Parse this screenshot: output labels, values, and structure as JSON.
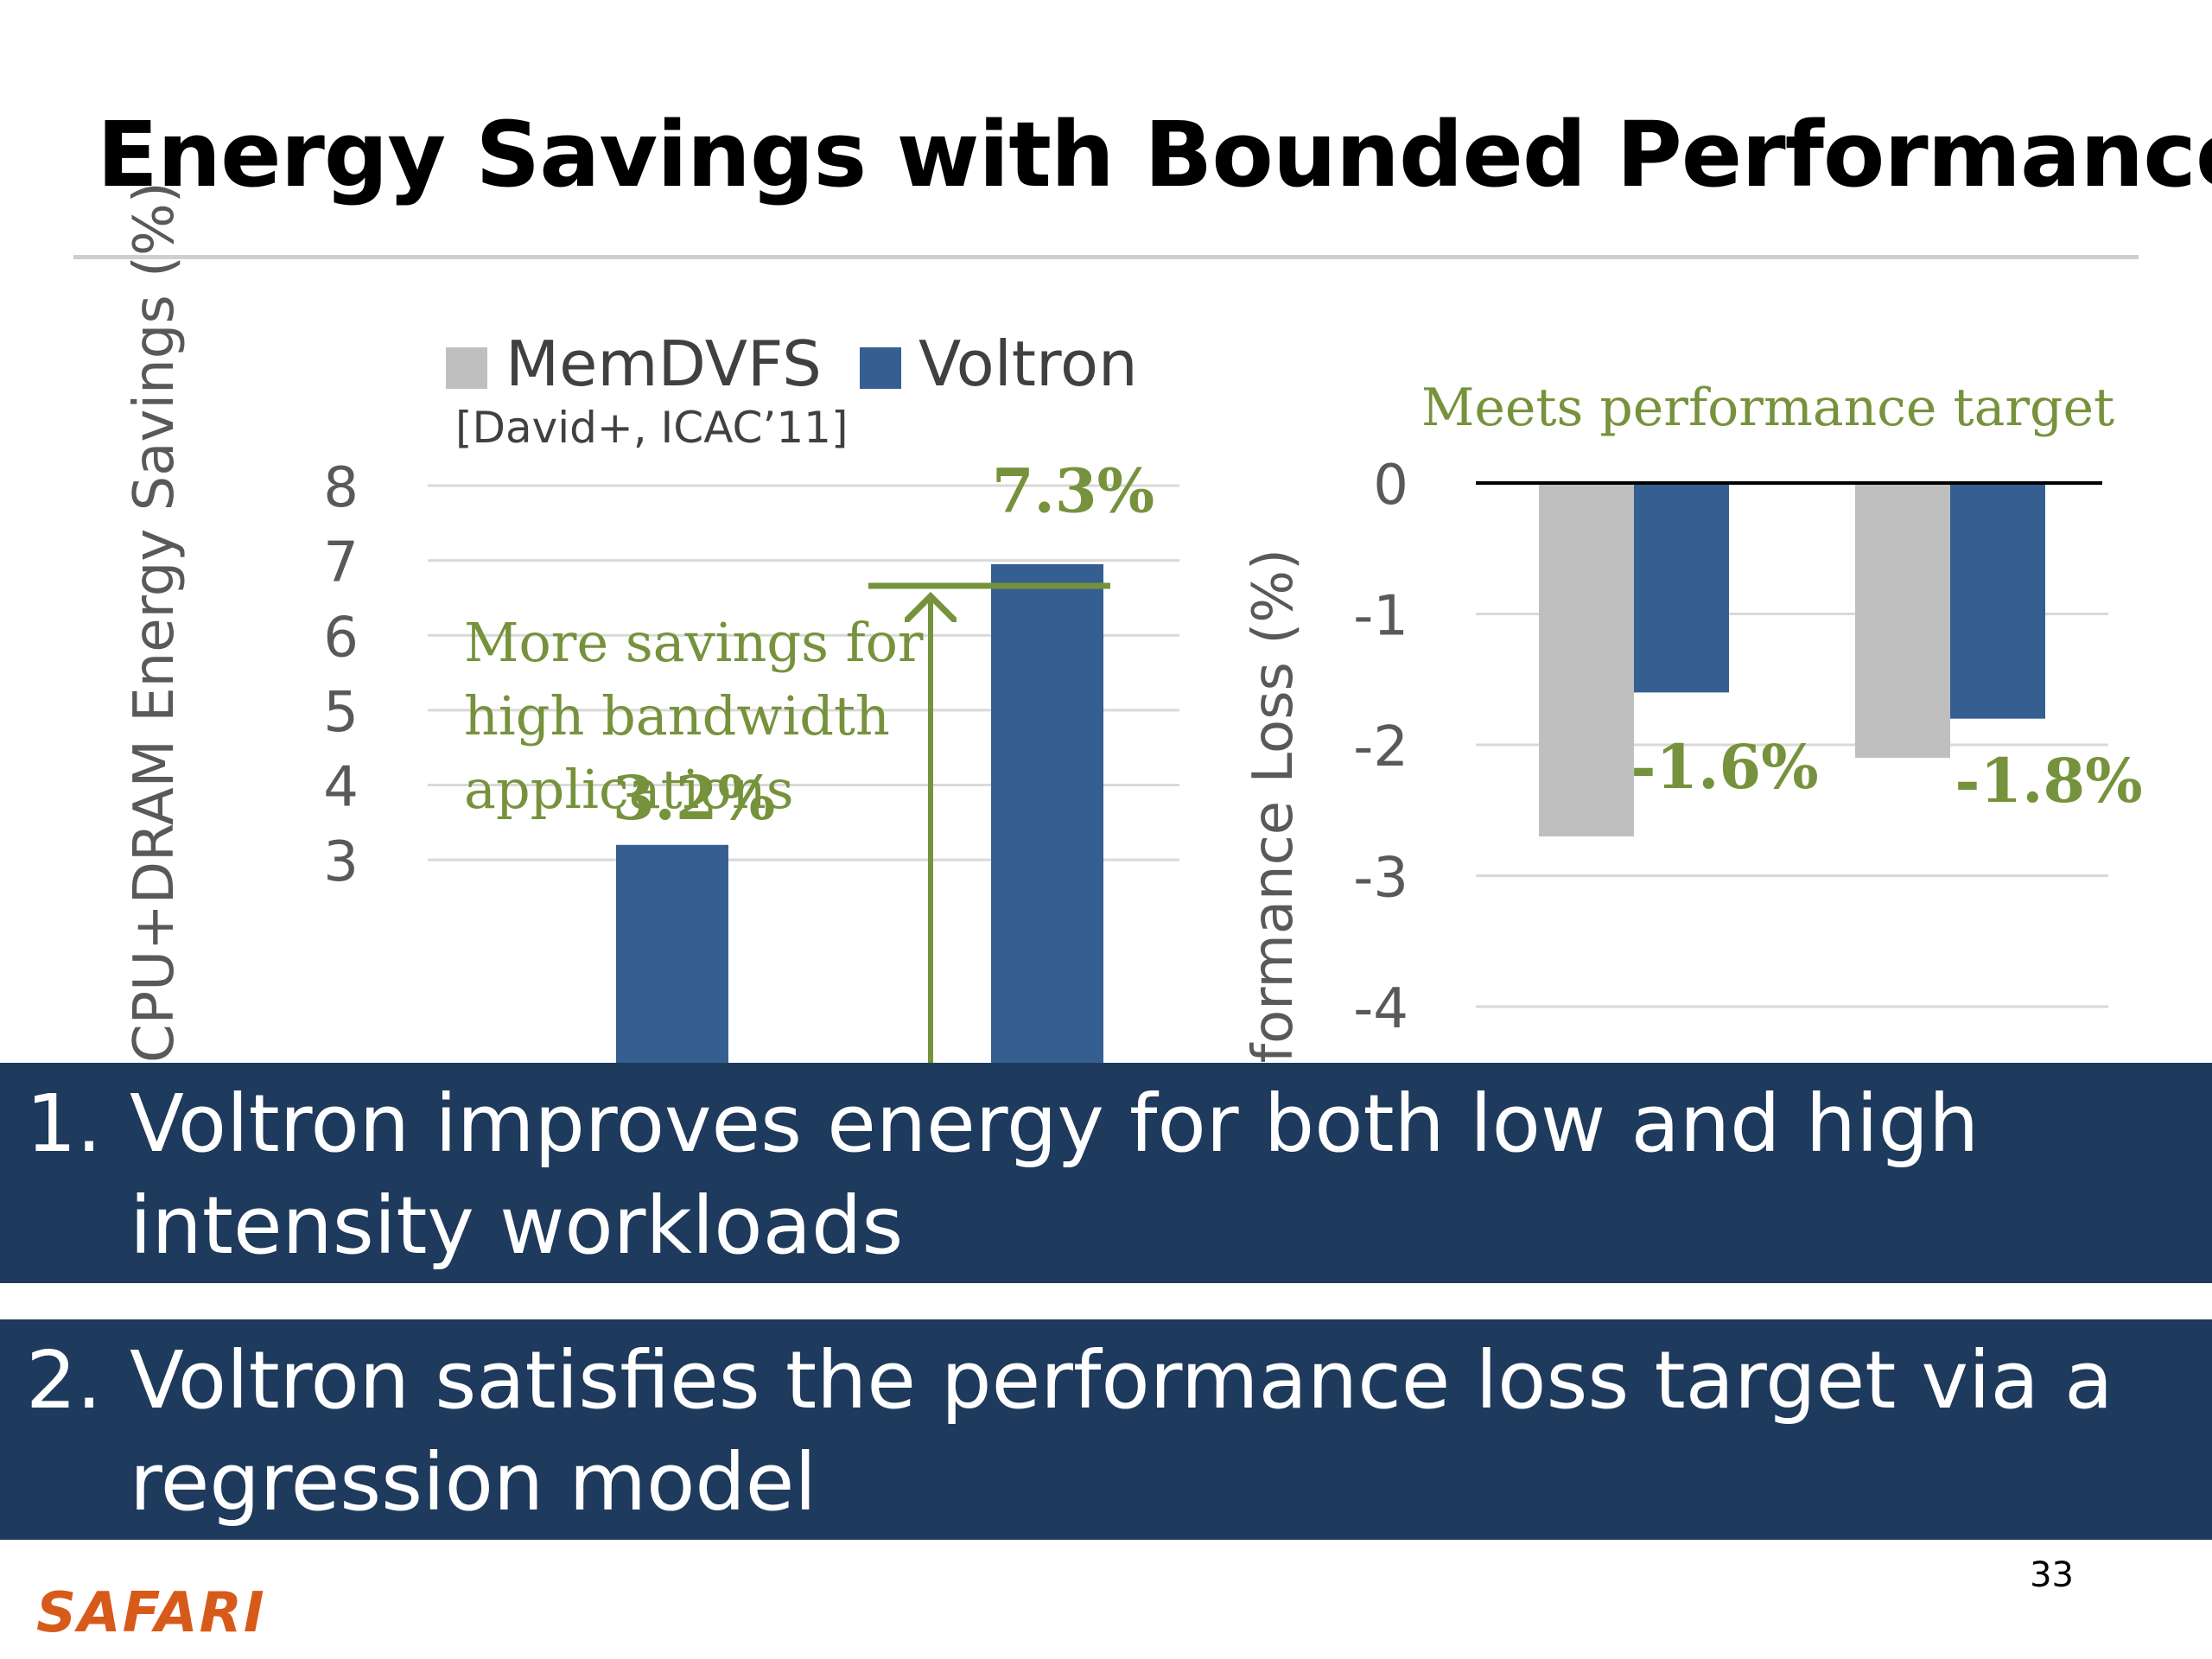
{
  "slide": {
    "title": "Energy Savings with Bounded Performance",
    "page_number": "33",
    "logo_text": "SAFARI"
  },
  "colors": {
    "memdvfs": "#bfbfbf",
    "voltron": "#365f91",
    "annotation_green": "#76923c",
    "overlay_bg": "#1e3a5c"
  },
  "legend": {
    "memdvfs": "MemDVFS",
    "memdvfs_citation": "[David+, ICAC’11]",
    "voltron": "Voltron"
  },
  "annotations": {
    "more_savings_line1": "More savings for",
    "more_savings_line2": "high bandwidth",
    "more_savings_line3": "applications",
    "meets_target": "Meets performance target"
  },
  "overlay": {
    "point1_num": "1.",
    "point1_text": "Voltron improves energy for both low and high intensity workloads",
    "point2_num": "2.",
    "point2_text": "Voltron satisfies the performance loss target via a regression model"
  },
  "chart_data": [
    {
      "type": "bar",
      "ylabel": "CPU+DRAM Energy Savings (%)",
      "ylim": [
        0,
        8
      ],
      "ytick_labels": [
        "8",
        "7",
        "6",
        "5",
        "4",
        "3"
      ],
      "series": [
        {
          "name": "Voltron",
          "values": [
            3.2,
            7.3
          ]
        }
      ],
      "data_labels": [
        "3.2%",
        "7.3%"
      ]
    },
    {
      "type": "bar",
      "ylabel": "Performance Loss (%)",
      "ylim": [
        -4,
        0
      ],
      "ytick_labels": [
        "0",
        "-1",
        "-2",
        "-3",
        "-4"
      ],
      "series": [
        {
          "name": "MemDVFS",
          "values": [
            -2.7,
            -2.1
          ]
        },
        {
          "name": "Voltron",
          "values": [
            -1.6,
            -1.8
          ]
        }
      ],
      "data_labels": [
        "-1.6%",
        "-1.8%"
      ]
    }
  ]
}
